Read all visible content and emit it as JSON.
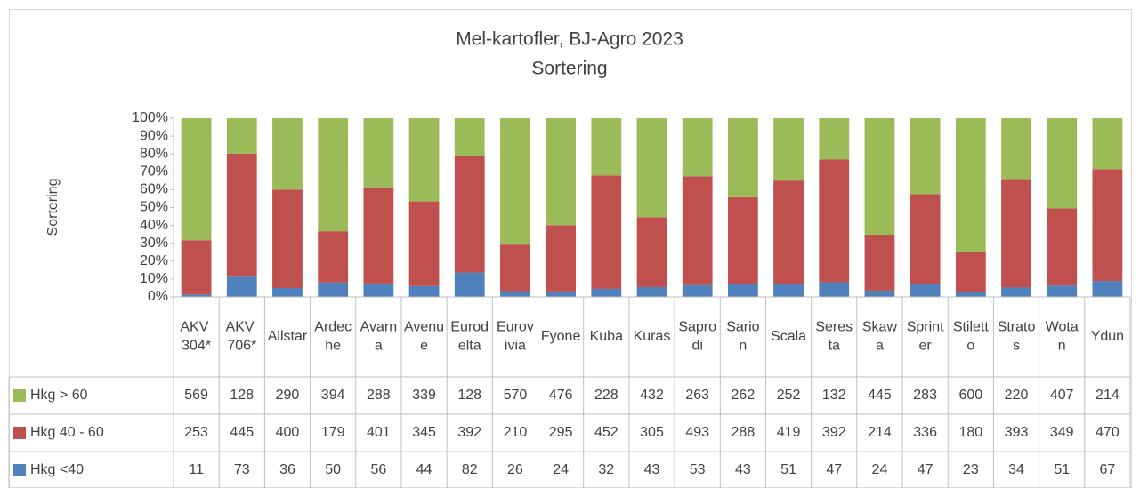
{
  "chart_data": {
    "type": "stacked_bar_100",
    "title": "Mel-kartofler, BJ-Agro 2023",
    "subtitle": "Sortering",
    "y_label": "Sortering",
    "categories": [
      "AKV 304*",
      "AKV 706*",
      "Allstar",
      "Ardeche",
      "Avarna",
      "Avenue",
      "Eurodelta",
      "Eurovivia",
      "Fyone",
      "Kuba",
      "Kuras",
      "Saprodi",
      "Sarion",
      "Scala",
      "Seresta",
      "Skawa",
      "Sprinter",
      "Stiletto",
      "Stratos",
      "Wotan",
      "Ydun"
    ],
    "series": [
      {
        "name": "Hkg > 60",
        "color": "#9bbb59",
        "values": [
          569,
          128,
          290,
          394,
          288,
          339,
          128,
          570,
          476,
          228,
          432,
          263,
          262,
          252,
          132,
          445,
          283,
          600,
          220,
          407,
          214
        ]
      },
      {
        "name": "Hkg 40 - 60",
        "color": "#c0504d",
        "values": [
          253,
          445,
          400,
          179,
          401,
          345,
          392,
          210,
          295,
          452,
          305,
          493,
          288,
          419,
          392,
          214,
          336,
          180,
          393,
          349,
          470
        ]
      },
      {
        "name": "Hkg <40",
        "color": "#4f81bd",
        "values": [
          11,
          73,
          36,
          50,
          56,
          44,
          82,
          26,
          24,
          32,
          43,
          53,
          43,
          51,
          47,
          24,
          47,
          23,
          34,
          51,
          67
        ]
      }
    ],
    "ylim": [
      0,
      100
    ],
    "yticks": [
      {
        "value": 0,
        "label": "0%"
      },
      {
        "value": 10,
        "label": "10%"
      },
      {
        "value": 20,
        "label": "20%"
      },
      {
        "value": 30,
        "label": "30%"
      },
      {
        "value": 40,
        "label": "40%"
      },
      {
        "value": 50,
        "label": "50%"
      },
      {
        "value": 60,
        "label": "60%"
      },
      {
        "value": 70,
        "label": "70%"
      },
      {
        "value": 80,
        "label": "80%"
      },
      {
        "value": 90,
        "label": "90%"
      },
      {
        "value": 100,
        "label": "100%"
      }
    ]
  }
}
